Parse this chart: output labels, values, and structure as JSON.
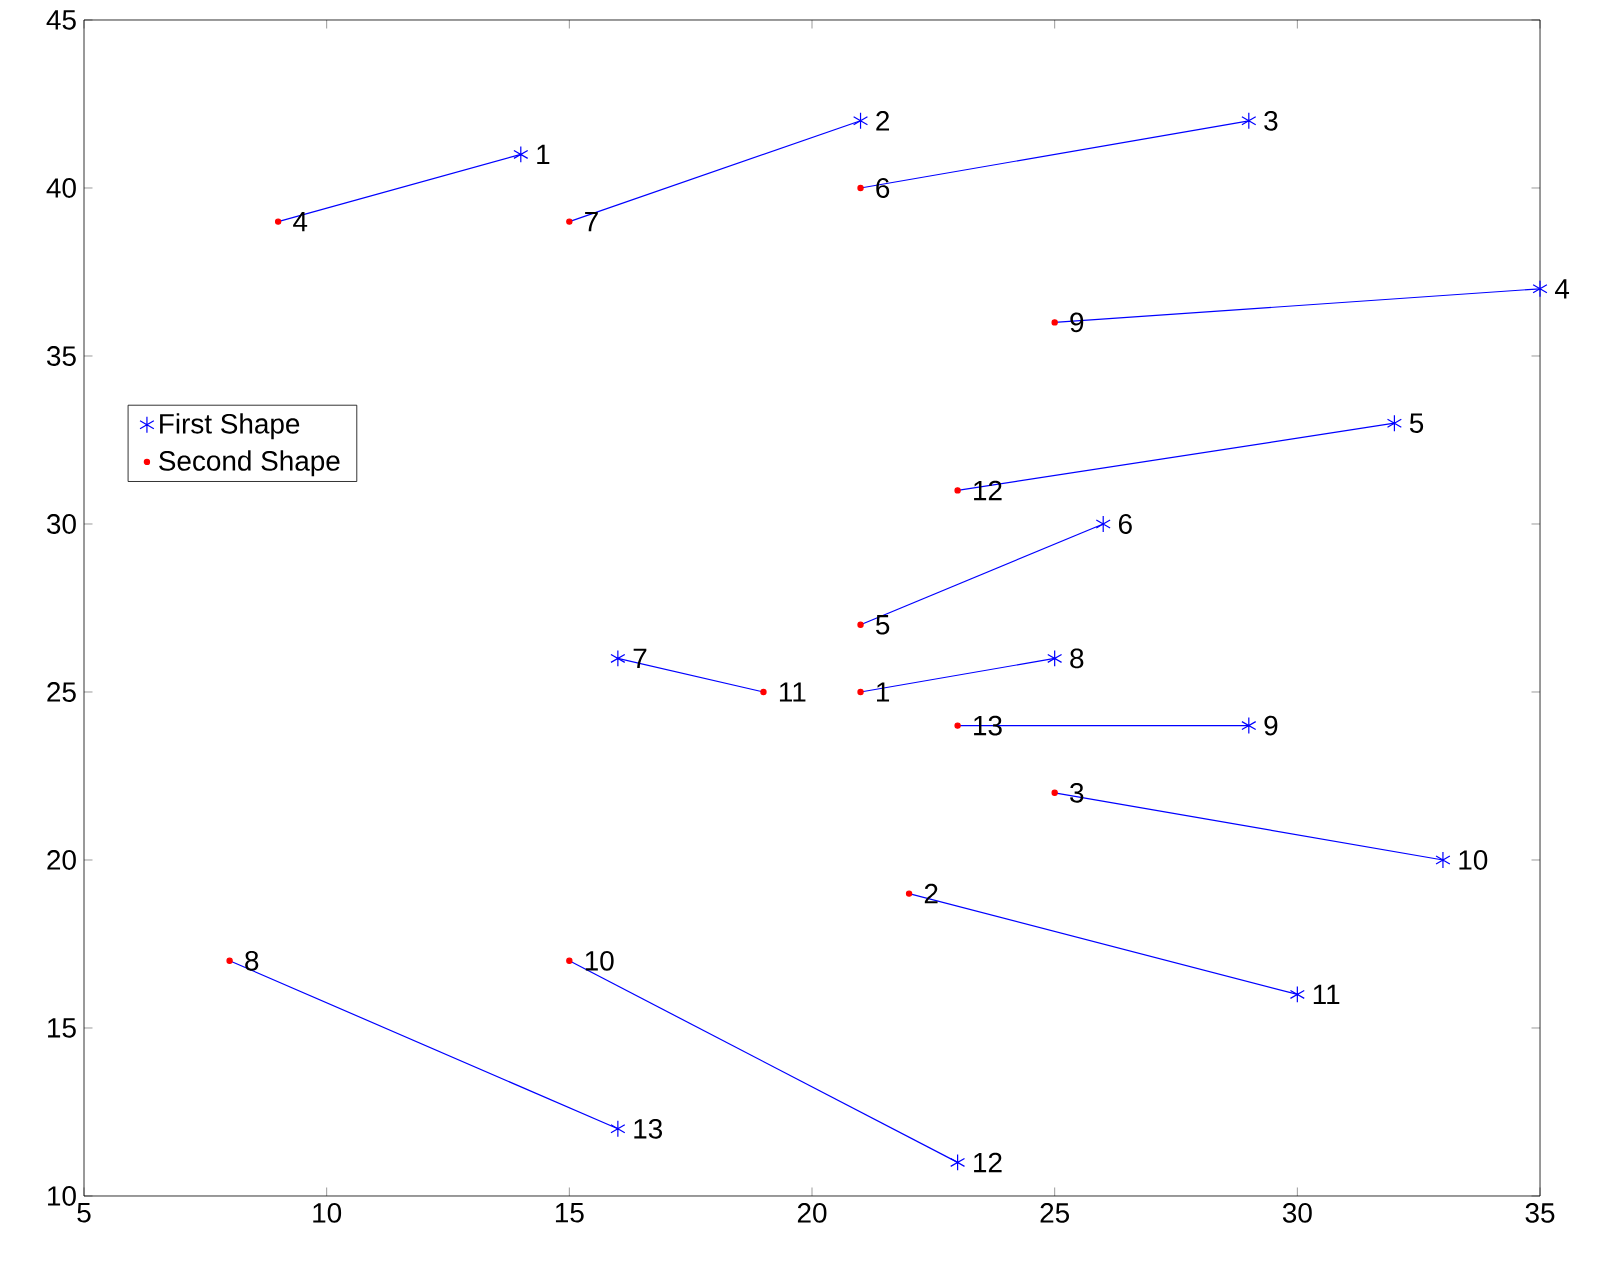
{
  "chart_data": {
    "type": "scatter",
    "xlim": [
      5,
      35
    ],
    "ylim": [
      10,
      45
    ],
    "xticks": [
      5,
      10,
      15,
      20,
      25,
      30,
      35
    ],
    "yticks": [
      10,
      15,
      20,
      25,
      30,
      35,
      40,
      45
    ],
    "grid": false,
    "legend": "left",
    "series": [
      {
        "name": "First Shape",
        "marker": "cross",
        "color": "#0000ff",
        "x": [
          14,
          21,
          29,
          35,
          32,
          26,
          16,
          25,
          29,
          33,
          30,
          23,
          16
        ],
        "values": [
          41,
          42,
          42,
          37,
          33,
          30,
          26,
          26,
          24,
          20,
          16,
          11,
          12
        ]
      },
      {
        "name": "Second Shape",
        "marker": "circle",
        "color": "#ff0000",
        "x": [
          21,
          22,
          25,
          9,
          21,
          21,
          15,
          8,
          25,
          15,
          19,
          23,
          23
        ],
        "values": [
          25,
          19,
          22,
          39,
          27,
          40,
          39,
          17,
          36,
          17,
          25,
          31,
          24
        ]
      },
      {
        "type": "line",
        "marker": "none",
        "color": "#0000ff",
        "x": [
          14,
          9
        ],
        "values": [
          41,
          39
        ]
      },
      {
        "type": "line",
        "marker": "none",
        "color": "#0000ff",
        "x": [
          21,
          15
        ],
        "values": [
          42,
          39
        ]
      },
      {
        "type": "line",
        "marker": "none",
        "color": "#0000ff",
        "x": [
          29,
          21
        ],
        "values": [
          42,
          40
        ]
      },
      {
        "type": "line",
        "marker": "none",
        "color": "#0000ff",
        "x": [
          35,
          25
        ],
        "values": [
          37,
          36
        ]
      },
      {
        "type": "line",
        "marker": "none",
        "color": "#0000ff",
        "x": [
          32,
          23
        ],
        "values": [
          33,
          31
        ]
      },
      {
        "type": "line",
        "marker": "none",
        "color": "#0000ff",
        "x": [
          26,
          21
        ],
        "values": [
          30,
          27
        ]
      },
      {
        "type": "line",
        "marker": "none",
        "color": "#0000ff",
        "x": [
          16,
          19
        ],
        "values": [
          26,
          25
        ]
      },
      {
        "type": "line",
        "marker": "none",
        "color": "#0000ff",
        "x": [
          25,
          21
        ],
        "values": [
          26,
          25
        ]
      },
      {
        "type": "line",
        "marker": "none",
        "color": "#0000ff",
        "x": [
          29,
          23
        ],
        "values": [
          24,
          24
        ]
      },
      {
        "type": "line",
        "marker": "none",
        "color": "#0000ff",
        "x": [
          33,
          25
        ],
        "values": [
          20,
          22
        ]
      },
      {
        "type": "line",
        "marker": "none",
        "color": "#0000ff",
        "x": [
          30,
          22
        ],
        "values": [
          16,
          19
        ]
      },
      {
        "type": "line",
        "marker": "none",
        "color": "#0000ff",
        "x": [
          23,
          15
        ],
        "values": [
          11,
          17
        ]
      },
      {
        "type": "line",
        "marker": "none",
        "color": "#0000ff",
        "x": [
          16,
          8
        ],
        "values": [
          12,
          17
        ]
      }
    ],
    "annotations": [
      {
        "text": "1",
        "x": 14,
        "y": 41
      },
      {
        "text": "2",
        "x": 21,
        "y": 42
      },
      {
        "text": "3",
        "x": 29,
        "y": 42
      },
      {
        "text": "4",
        "x": 35,
        "y": 37
      },
      {
        "text": "5",
        "x": 32,
        "y": 33
      },
      {
        "text": "6",
        "x": 26,
        "y": 30
      },
      {
        "text": "7",
        "x": 16,
        "y": 26
      },
      {
        "text": "8",
        "x": 25,
        "y": 26
      },
      {
        "text": "9",
        "x": 29,
        "y": 24
      },
      {
        "text": "10",
        "x": 33,
        "y": 20
      },
      {
        "text": "11",
        "x": 30,
        "y": 16
      },
      {
        "text": "12",
        "x": 23,
        "y": 11
      },
      {
        "text": "13",
        "x": 16,
        "y": 12
      },
      {
        "text": "1",
        "x": 21,
        "y": 25
      },
      {
        "text": "2",
        "x": 22,
        "y": 19
      },
      {
        "text": "3",
        "x": 25,
        "y": 22
      },
      {
        "text": "4",
        "x": 9,
        "y": 39
      },
      {
        "text": "5",
        "x": 21,
        "y": 27
      },
      {
        "text": "6",
        "x": 21,
        "y": 40
      },
      {
        "text": "7",
        "x": 15,
        "y": 39
      },
      {
        "text": "8",
        "x": 8,
        "y": 17
      },
      {
        "text": "9",
        "x": 25,
        "y": 36
      },
      {
        "text": "10",
        "x": 15,
        "y": 17
      },
      {
        "text": "11",
        "x": 19,
        "y": 25
      },
      {
        "text": "12",
        "x": 23,
        "y": 31
      },
      {
        "text": "13",
        "x": 23,
        "y": 24
      }
    ]
  }
}
